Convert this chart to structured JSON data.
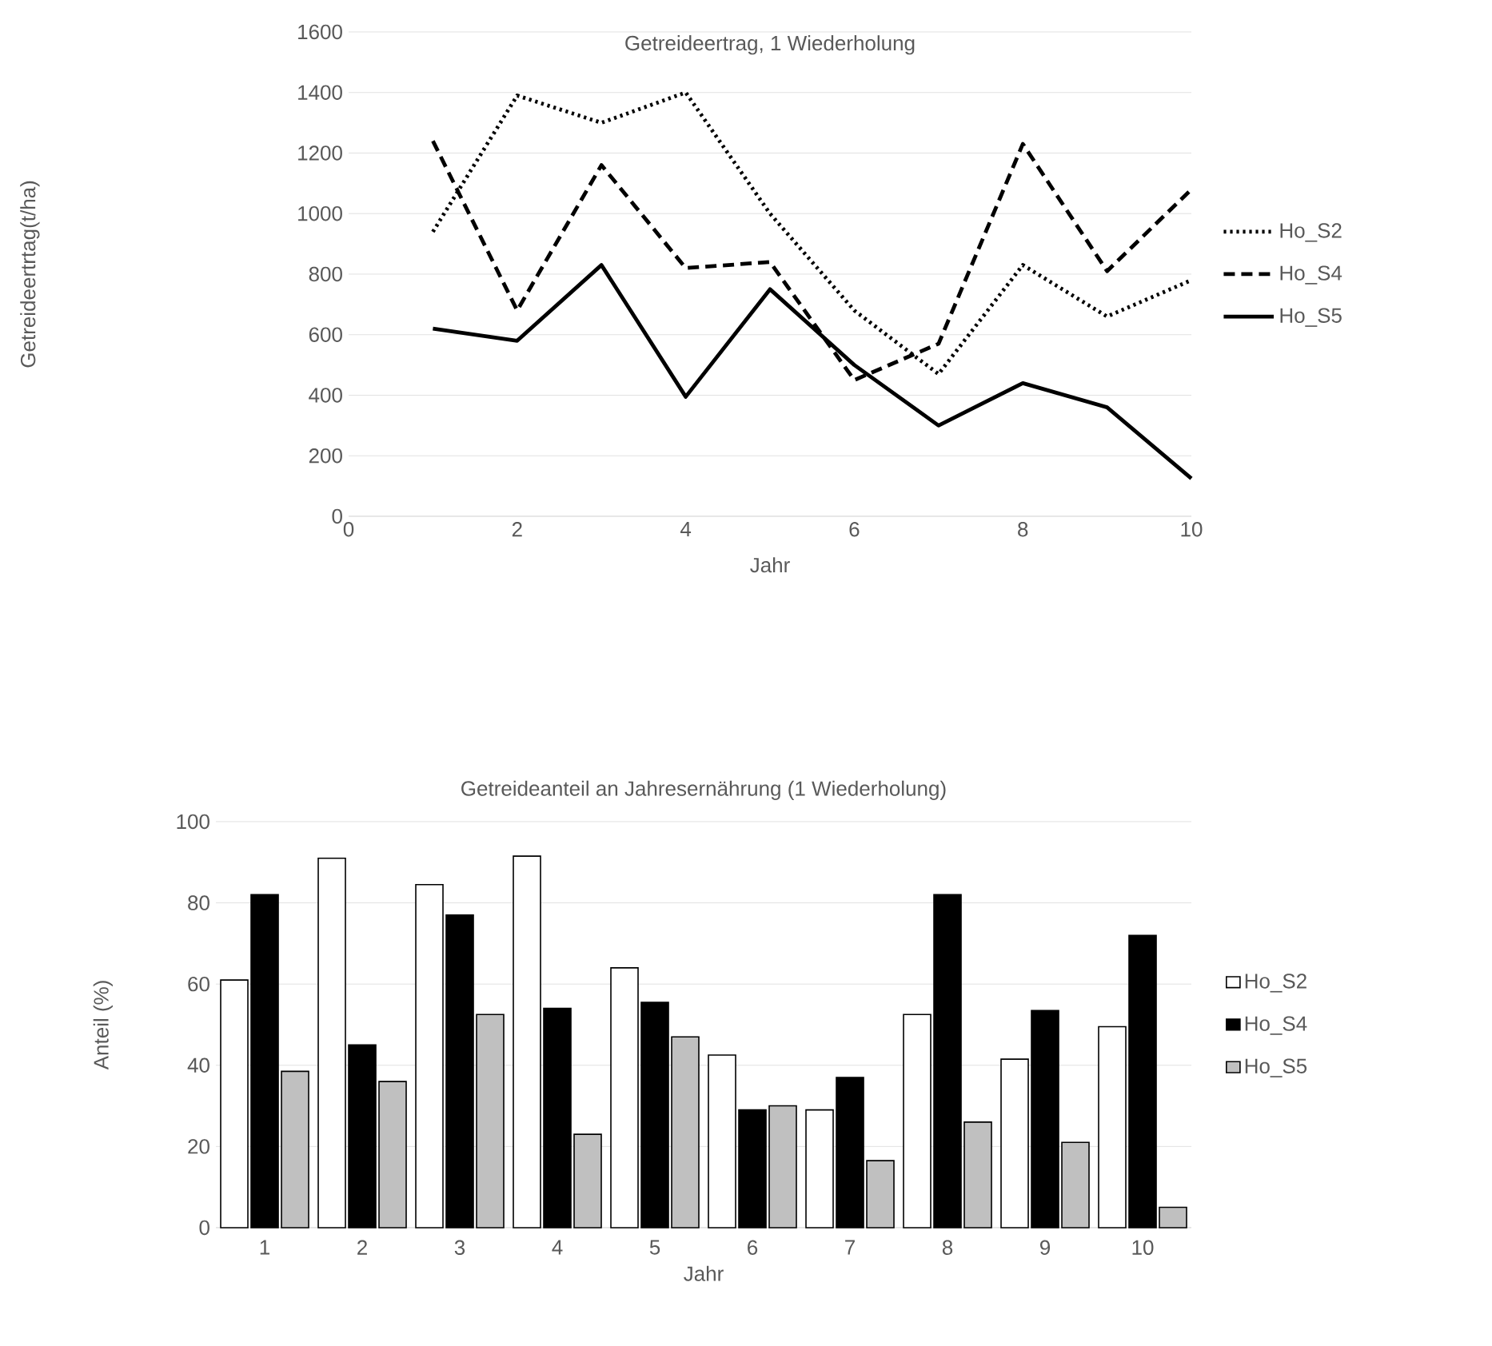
{
  "chart_data": [
    {
      "type": "line",
      "title": "Getreideertrag, 1 Wiederholung",
      "xlabel": "Jahr",
      "ylabel": "Getreideertrtag(t/ha)",
      "x": [
        1,
        2,
        3,
        4,
        5,
        6,
        7,
        8,
        9,
        10
      ],
      "series": [
        {
          "name": "Ho_S2",
          "color": "#000000",
          "line_style": "dotted",
          "values": [
            940,
            1390,
            1300,
            1400,
            1000,
            680,
            470,
            830,
            660,
            780
          ]
        },
        {
          "name": "Ho_S4",
          "color": "#000000",
          "line_style": "dashed",
          "values": [
            1240,
            680,
            1160,
            820,
            840,
            450,
            570,
            1230,
            810,
            1080
          ]
        },
        {
          "name": "Ho_S5",
          "color": "#000000",
          "line_style": "solid",
          "values": [
            620,
            580,
            830,
            395,
            750,
            500,
            300,
            440,
            360,
            125
          ]
        }
      ],
      "xlim": [
        0,
        10
      ],
      "xticks": [
        0,
        2,
        4,
        6,
        8,
        10
      ],
      "ylim": [
        0,
        1600
      ],
      "yticks": [
        0,
        200,
        400,
        600,
        800,
        1000,
        1200,
        1400,
        1600
      ],
      "grid": "y",
      "legend": "right",
      "marker": "none"
    },
    {
      "type": "bar",
      "title": "Getreideanteil an Jahresernährung (1 Wiederholung)",
      "xlabel": "Jahr",
      "ylabel": "Anteil (%)",
      "categories": [
        "1",
        "2",
        "3",
        "4",
        "5",
        "6",
        "7",
        "8",
        "9",
        "10"
      ],
      "series": [
        {
          "name": "Ho_S2",
          "color": "#ffffff",
          "values": [
            61,
            91,
            84.5,
            91.5,
            64,
            42.5,
            29,
            52.5,
            41.5,
            49.5
          ]
        },
        {
          "name": "Ho_S4",
          "color": "#000000",
          "values": [
            82,
            45,
            77,
            54,
            55.5,
            29,
            37,
            82,
            53.5,
            72
          ]
        },
        {
          "name": "Ho_S5",
          "color": "#c0c0c0",
          "values": [
            38.5,
            36,
            52.5,
            23,
            47,
            30,
            16.5,
            26,
            21,
            5
          ]
        }
      ],
      "ylim": [
        0,
        100
      ],
      "yticks": [
        0,
        20,
        40,
        60,
        80,
        100
      ],
      "grid": "y",
      "legend": "right"
    }
  ]
}
